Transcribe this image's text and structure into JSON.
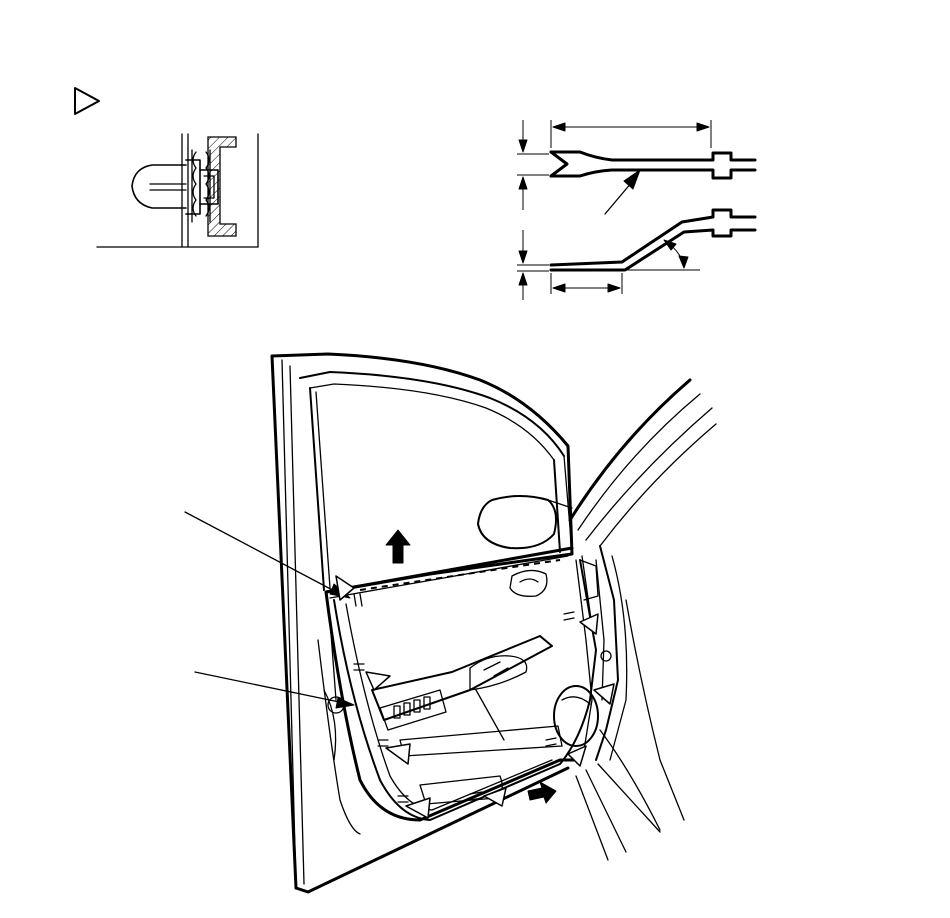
{
  "figure": {
    "kind": "service-manual-illustration",
    "clip_marker_symbol": "hollow-triangle-icon",
    "clip_locations_marked": 8,
    "arrows": [
      "pull-up-arrow",
      "pull-out-arrow"
    ],
    "colors": {
      "line": "#000000",
      "background": "#ffffff"
    }
  }
}
